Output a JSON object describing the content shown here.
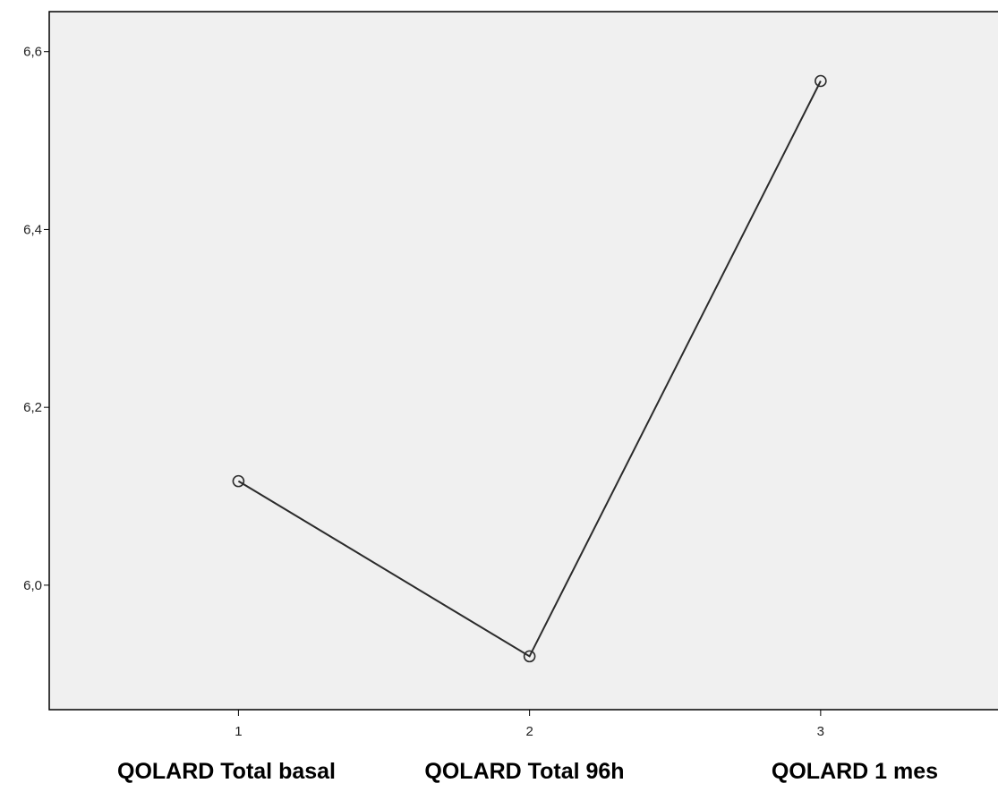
{
  "chart_data": {
    "type": "line",
    "x": [
      1,
      2,
      3
    ],
    "series": [
      {
        "values": [
          6.117,
          5.92,
          6.567
        ]
      }
    ],
    "xticks": [
      "1",
      "2",
      "3"
    ],
    "yticks": [
      "6,0",
      "6,2",
      "6,4",
      "6,6"
    ],
    "ylim": [
      5.86,
      6.645
    ],
    "xlim": [
      0.35,
      3.64
    ],
    "grid": false,
    "marker": "open-circle",
    "colors": {
      "plot_background": "#f0f0f0",
      "line": "#2b2b2b",
      "axis": "#000000"
    }
  },
  "category_labels": [
    "QOLARD Total basal",
    "QOLARD Total 96h",
    "QOLARD 1 mes"
  ]
}
